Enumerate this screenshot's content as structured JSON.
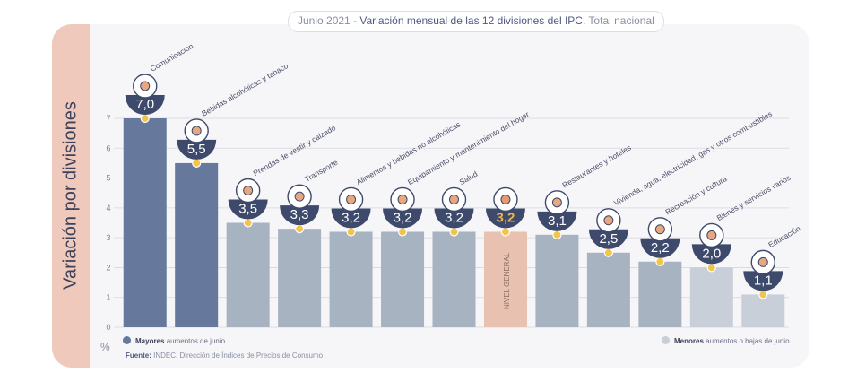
{
  "header": {
    "date": "Junio 2021",
    "separator": " - ",
    "title": "Variación mensual de las 12 divisiones del IPC.",
    "scope": " Total nacional"
  },
  "chart_data": {
    "type": "bar",
    "ylabel": "Variación por divisiones",
    "yunit": "%",
    "ylim": [
      0,
      7
    ],
    "yticks": [
      0,
      1,
      2,
      3,
      4,
      5,
      6,
      7
    ],
    "grid": true,
    "categories": [
      "Comunicación",
      "Bebidas alcohólicas y tabaco",
      "Prendas de vestir y calzado",
      "Transporte",
      "Alimentos y bebidas no alcohólicas",
      "Equipamiento y mantenimiento del hogar",
      "Salud",
      "Nivel general",
      "Restaurantes y hoteles",
      "Vivienda, agua, electricidad, gas y otros combustibles",
      "Recreación y cultura",
      "Bienes y servicios varios",
      "Educación"
    ],
    "values": [
      7.0,
      5.5,
      3.5,
      3.3,
      3.2,
      3.2,
      3.2,
      3.2,
      3.1,
      2.5,
      2.2,
      2.0,
      1.1
    ],
    "value_labels": [
      "7,0",
      "5,5",
      "3,5",
      "3,3",
      "3,2",
      "3,2",
      "3,2",
      "3,2",
      "3,1",
      "2,5",
      "2,2",
      "2,0",
      "1,1"
    ],
    "bar_text": [
      "",
      "",
      "",
      "",
      "",
      "",
      "",
      "NIVEL GENERAL",
      "",
      "",
      "",
      "",
      ""
    ],
    "groups": [
      "mayores",
      "mayores",
      "menores",
      "menores",
      "menores",
      "menores",
      "menores",
      "general",
      "menores",
      "menores",
      "menores",
      "menores",
      "menores"
    ],
    "colors": {
      "mayores": "#66789b",
      "menores": "#a8b3c2",
      "menores_light": "#c9cfd8",
      "general": "#e8c1b1",
      "badge": "#3d4a6b",
      "badge_text": "#ffffff",
      "badge_text_general": "#f0b34a",
      "dot": "#f0c54a"
    },
    "legend": [
      {
        "key": "mayores",
        "bold": "Mayores",
        "text": " aumentos de junio"
      },
      {
        "key": "menores",
        "bold": "Menores",
        "text": " aumentos o bajas de junio"
      }
    ]
  },
  "source": {
    "label": "Fuente:",
    "text": " INDEC, Dirección de Índices de Precios de Consumo"
  },
  "icons": [
    "smartphone-icon",
    "bottle-glass-icon",
    "tshirt-icon",
    "bus-icon",
    "chicken-icon",
    "oven-icon",
    "medical-cross-icon",
    "shopping-basket-icon",
    "magnifier-cutlery-icon",
    "bulb-icon",
    "sun-umbrella-icon",
    "comb-scissors-icon",
    "notebook-icon"
  ]
}
